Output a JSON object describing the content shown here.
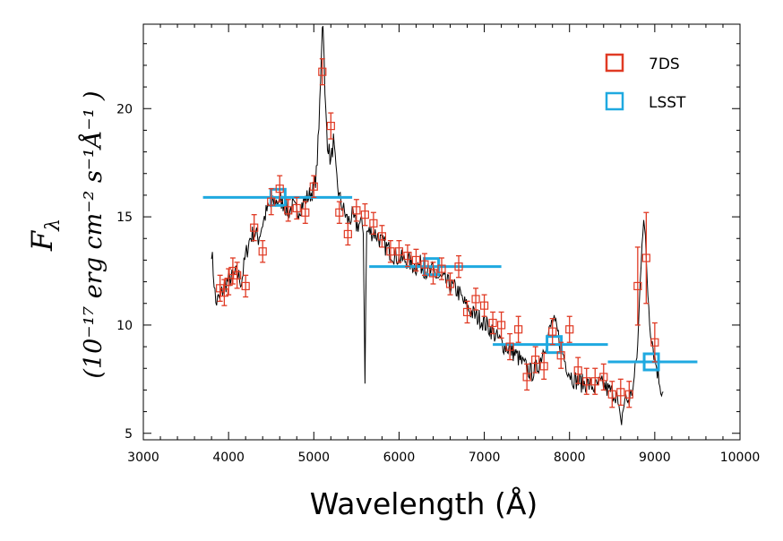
{
  "chart_data": {
    "type": "scatter",
    "xlabel": "Wavelength (Å)",
    "ylabel_parts": [
      "F",
      "λ"
    ],
    "ylabel_units": "(10⁻¹⁷ erg cm⁻² s⁻¹Å⁻¹ )",
    "xlim": [
      3000,
      10000
    ],
    "ylim": [
      4.7,
      23.9
    ],
    "xticks": [
      3000,
      4000,
      5000,
      6000,
      7000,
      8000,
      9000,
      10000
    ],
    "yticks": [
      5,
      10,
      15,
      20
    ],
    "legend_position": "top-right",
    "colors": {
      "spectrum": "#000000",
      "seven_ds": "#e03a24",
      "lsst": "#1fa9e0"
    },
    "spectrum_anchors": [
      [
        3800,
        13.5
      ],
      [
        3850,
        11.0
      ],
      [
        3900,
        11.3
      ],
      [
        3950,
        11.8
      ],
      [
        4000,
        12.1
      ],
      [
        4050,
        12.2
      ],
      [
        4100,
        12.4
      ],
      [
        4150,
        12.0
      ],
      [
        4200,
        13.2
      ],
      [
        4250,
        14.0
      ],
      [
        4300,
        14.3
      ],
      [
        4350,
        14.0
      ],
      [
        4400,
        14.7
      ],
      [
        4450,
        15.3
      ],
      [
        4500,
        15.5
      ],
      [
        4550,
        15.7
      ],
      [
        4600,
        15.8
      ],
      [
        4650,
        15.6
      ],
      [
        4700,
        15.2
      ],
      [
        4750,
        15.5
      ],
      [
        4800,
        15.2
      ],
      [
        4850,
        15.5
      ],
      [
        4900,
        15.8
      ],
      [
        4950,
        16.0
      ],
      [
        5000,
        16.3
      ],
      [
        5030,
        17.0
      ],
      [
        5060,
        19.0
      ],
      [
        5080,
        21.5
      ],
      [
        5100,
        24.0
      ],
      [
        5115,
        23.5
      ],
      [
        5130,
        20.5
      ],
      [
        5160,
        18.5
      ],
      [
        5200,
        17.5
      ],
      [
        5230,
        18.5
      ],
      [
        5260,
        17.0
      ],
      [
        5300,
        15.9
      ],
      [
        5350,
        15.3
      ],
      [
        5400,
        14.8
      ],
      [
        5450,
        15.0
      ],
      [
        5500,
        14.6
      ],
      [
        5550,
        14.7
      ],
      [
        5580,
        14.5
      ],
      [
        5600,
        7.6
      ],
      [
        5620,
        14.3
      ],
      [
        5650,
        14.3
      ],
      [
        5700,
        14.3
      ],
      [
        5750,
        14.1
      ],
      [
        5800,
        13.8
      ],
      [
        5850,
        13.6
      ],
      [
        5900,
        13.4
      ],
      [
        5950,
        13.2
      ],
      [
        6000,
        13.1
      ],
      [
        6050,
        13.0
      ],
      [
        6100,
        13.0
      ],
      [
        6150,
        12.8
      ],
      [
        6200,
        12.7
      ],
      [
        6250,
        12.8
      ],
      [
        6300,
        12.6
      ],
      [
        6350,
        12.4
      ],
      [
        6400,
        12.5
      ],
      [
        6450,
        12.2
      ],
      [
        6500,
        12.1
      ],
      [
        6550,
        12.0
      ],
      [
        6600,
        11.8
      ],
      [
        6650,
        11.7
      ],
      [
        6700,
        11.5
      ],
      [
        6750,
        11.1
      ],
      [
        6800,
        10.8
      ],
      [
        6850,
        10.6
      ],
      [
        6900,
        10.4
      ],
      [
        6950,
        10.3
      ],
      [
        7000,
        10.1
      ],
      [
        7050,
        9.9
      ],
      [
        7100,
        9.7
      ],
      [
        7150,
        9.4
      ],
      [
        7200,
        9.2
      ],
      [
        7250,
        9.0
      ],
      [
        7300,
        8.9
      ],
      [
        7350,
        8.7
      ],
      [
        7400,
        8.5
      ],
      [
        7450,
        8.2
      ],
      [
        7500,
        8.0
      ],
      [
        7550,
        7.8
      ],
      [
        7600,
        7.9
      ],
      [
        7650,
        8.3
      ],
      [
        7700,
        9.0
      ],
      [
        7750,
        9.5
      ],
      [
        7800,
        10.2
      ],
      [
        7850,
        9.8
      ],
      [
        7900,
        9.0
      ],
      [
        7950,
        8.3
      ],
      [
        8000,
        7.8
      ],
      [
        8050,
        7.5
      ],
      [
        8100,
        7.4
      ],
      [
        8150,
        7.3
      ],
      [
        8200,
        7.3
      ],
      [
        8250,
        7.2
      ],
      [
        8300,
        7.1
      ],
      [
        8350,
        7.3
      ],
      [
        8400,
        7.2
      ],
      [
        8450,
        7.0
      ],
      [
        8500,
        6.9
      ],
      [
        8550,
        6.8
      ],
      [
        8600,
        5.4
      ],
      [
        8650,
        6.6
      ],
      [
        8700,
        6.5
      ],
      [
        8750,
        7.2
      ],
      [
        8800,
        9.0
      ],
      [
        8830,
        12.0
      ],
      [
        8850,
        14.0
      ],
      [
        8870,
        15.0
      ],
      [
        8890,
        13.8
      ],
      [
        8920,
        11.5
      ],
      [
        8950,
        9.8
      ],
      [
        9000,
        8.5
      ],
      [
        9050,
        7.5
      ],
      [
        9080,
        7.0
      ],
      [
        9100,
        6.9
      ]
    ],
    "series": [
      {
        "name": "7DS",
        "points": [
          [
            3900,
            11.7,
            0.6
          ],
          [
            3950,
            11.5,
            0.6
          ],
          [
            4000,
            12.0,
            0.6
          ],
          [
            4050,
            12.5,
            0.6
          ],
          [
            4100,
            12.3,
            0.6
          ],
          [
            4200,
            11.8,
            0.5
          ],
          [
            4300,
            14.5,
            0.6
          ],
          [
            4400,
            13.4,
            0.5
          ],
          [
            4500,
            15.7,
            0.6
          ],
          [
            4600,
            16.3,
            0.6
          ],
          [
            4700,
            15.3,
            0.5
          ],
          [
            4800,
            15.4,
            0.5
          ],
          [
            4900,
            15.2,
            0.5
          ],
          [
            5000,
            16.4,
            0.5
          ],
          [
            5100,
            21.7,
            0.6
          ],
          [
            5200,
            19.2,
            0.6
          ],
          [
            5300,
            15.2,
            0.5
          ],
          [
            5400,
            14.2,
            0.5
          ],
          [
            5500,
            15.3,
            0.5
          ],
          [
            5600,
            15.1,
            0.5
          ],
          [
            5700,
            14.7,
            0.5
          ],
          [
            5800,
            14.1,
            0.5
          ],
          [
            5900,
            13.4,
            0.5
          ],
          [
            6000,
            13.4,
            0.5
          ],
          [
            6100,
            13.2,
            0.5
          ],
          [
            6200,
            13.0,
            0.5
          ],
          [
            6300,
            12.8,
            0.5
          ],
          [
            6400,
            12.4,
            0.5
          ],
          [
            6500,
            12.6,
            0.5
          ],
          [
            6600,
            11.9,
            0.5
          ],
          [
            6700,
            12.7,
            0.5
          ],
          [
            6800,
            10.6,
            0.5
          ],
          [
            6900,
            11.2,
            0.5
          ],
          [
            7000,
            10.9,
            0.5
          ],
          [
            7100,
            10.1,
            0.5
          ],
          [
            7200,
            10.0,
            0.6
          ],
          [
            7300,
            9.0,
            0.6
          ],
          [
            7400,
            9.8,
            0.6
          ],
          [
            7500,
            7.6,
            0.6
          ],
          [
            7600,
            8.4,
            0.6
          ],
          [
            7700,
            8.1,
            0.6
          ],
          [
            7800,
            9.7,
            0.6
          ],
          [
            7900,
            8.6,
            0.6
          ],
          [
            8000,
            9.8,
            0.6
          ],
          [
            8100,
            7.9,
            0.6
          ],
          [
            8200,
            7.4,
            0.6
          ],
          [
            8300,
            7.4,
            0.6
          ],
          [
            8400,
            7.6,
            0.6
          ],
          [
            8500,
            6.8,
            0.6
          ],
          [
            8600,
            6.9,
            0.6
          ],
          [
            8700,
            6.8,
            0.6
          ],
          [
            8800,
            11.8,
            1.8
          ],
          [
            8900,
            13.1,
            2.1
          ],
          [
            9000,
            9.2,
            0.9
          ]
        ]
      },
      {
        "name": "LSST",
        "points": [
          [
            4580,
            15.9,
            3700,
            5450
          ],
          [
            6380,
            12.7,
            5650,
            7200
          ],
          [
            7820,
            9.1,
            7100,
            8450
          ],
          [
            8960,
            8.3,
            8450,
            9500
          ]
        ]
      }
    ]
  }
}
